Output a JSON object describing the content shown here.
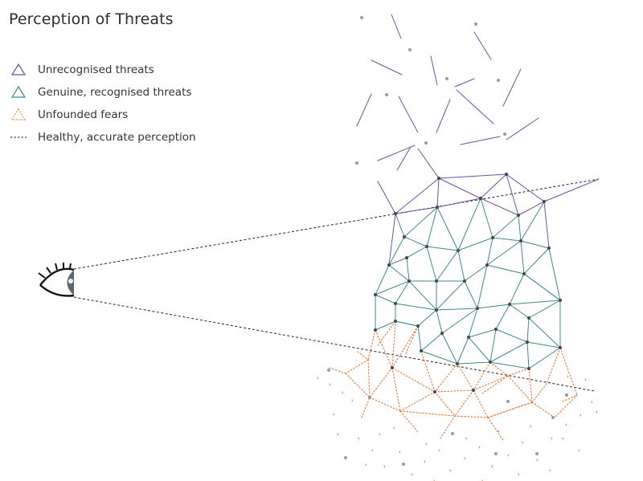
{
  "title": "Perception of Threats",
  "legend": [
    {
      "label": "Unrecognised threats",
      "symbol": "triangle-outline",
      "color": "#6b51a6",
      "style": "solid"
    },
    {
      "label": "Genuine, recognised threats",
      "symbol": "triangle-outline",
      "color": "#3d8a8c",
      "style": "solid"
    },
    {
      "label": "Unfounded fears",
      "symbol": "triangle-outline",
      "color": "#e8742f",
      "style": "dotted"
    },
    {
      "label": "Healthy, accurate perception",
      "symbol": "line",
      "color": "#222222",
      "style": "dashed"
    }
  ],
  "colors": {
    "unrecognised": "#6b51a6",
    "recognised": "#3d8a8c",
    "unfounded": "#e8742f",
    "perception": "#222222",
    "node": "#4a4a4a",
    "node_faint": "#9a9a9a",
    "eye_iris": "#5d6770"
  },
  "icons": {
    "eye": "eye-icon"
  }
}
